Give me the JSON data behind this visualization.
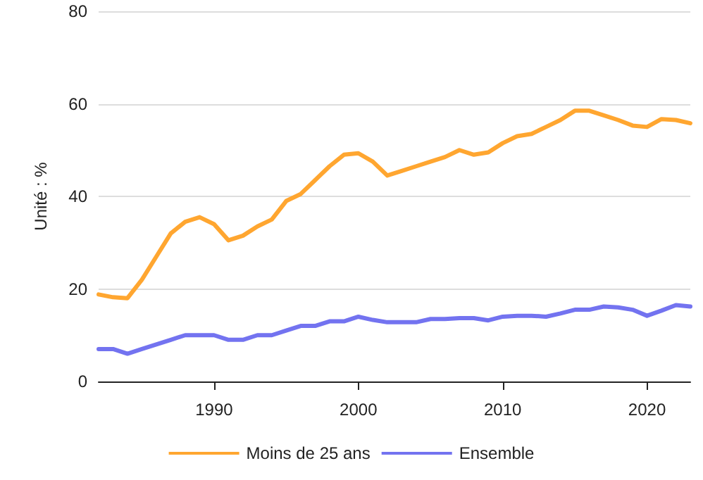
{
  "chart_data": {
    "type": "line",
    "ylabel": "Unité : %",
    "x": [
      1982,
      1983,
      1984,
      1985,
      1986,
      1987,
      1988,
      1989,
      1990,
      1991,
      1992,
      1993,
      1994,
      1995,
      1996,
      1997,
      1998,
      1999,
      2000,
      2001,
      2002,
      2003,
      2004,
      2005,
      2006,
      2007,
      2008,
      2009,
      2010,
      2011,
      2012,
      2013,
      2014,
      2015,
      2016,
      2017,
      2018,
      2019,
      2020,
      2021,
      2022,
      2023
    ],
    "series": [
      {
        "name": "Moins de 25 ans",
        "color": "#ffa630",
        "values": [
          18.8,
          18.2,
          18,
          22,
          27,
          32,
          34.5,
          35.5,
          34,
          30.5,
          31.5,
          33.5,
          35,
          39,
          40.5,
          43.5,
          46.5,
          49,
          49.3,
          47.5,
          44.5,
          45.5,
          46.5,
          47.5,
          48.5,
          50,
          49,
          49.5,
          51.5,
          53,
          53.5,
          55,
          56.5,
          58.5,
          58.5,
          57.5,
          56.5,
          55.3,
          55,
          56.7,
          56.5,
          55.8
        ]
      },
      {
        "name": "Ensemble",
        "color": "#7373f0",
        "values": [
          7,
          7,
          6,
          7,
          8,
          9,
          10,
          10,
          10,
          9,
          9,
          10,
          10,
          11,
          12,
          12,
          13,
          13,
          14,
          13.3,
          12.8,
          12.8,
          12.8,
          13.5,
          13.5,
          13.7,
          13.7,
          13.2,
          14,
          14.2,
          14.2,
          14,
          14.7,
          15.5,
          15.5,
          16.2,
          16,
          15.5,
          14.2,
          15.3,
          16.5,
          16.2
        ]
      }
    ],
    "xlim": [
      1982,
      2023
    ],
    "xticks": [
      1990,
      2000,
      2010,
      2020
    ],
    "ylim": [
      0,
      80
    ],
    "yticks": [
      0,
      20,
      40,
      60,
      80
    ],
    "grid": "y",
    "legend": "bottom",
    "marker": "none",
    "line_style": "solid"
  }
}
